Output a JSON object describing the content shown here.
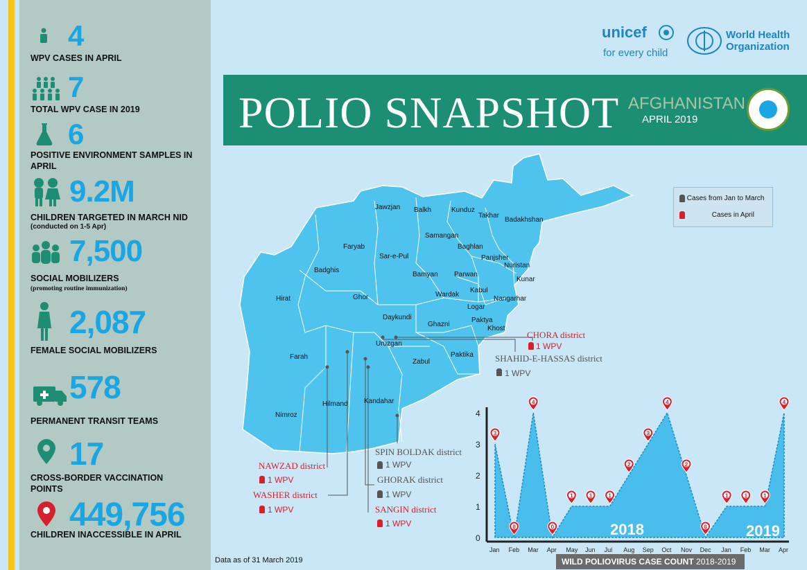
{
  "stats": [
    {
      "number": "4",
      "label": "WPV CASES IN APRIL",
      "icon": "person-icon"
    },
    {
      "number": "7",
      "label": "TOTAL WPV CASE IN 2019",
      "icon": "people-group-icon"
    },
    {
      "number": "6",
      "label": "POSITIVE ENVIRONMENT SAMPLES IN APRIL",
      "icon": "flask-icon"
    },
    {
      "number": "9.2M",
      "label": "CHILDREN TARGETED IN MARCH NID",
      "sub": "(conducted on 1-5 Apr)",
      "icon": "children-icon"
    },
    {
      "number": "7,500",
      "label": "SOCIAL MOBILIZERS",
      "sub": "(promoting routine immunization)",
      "icon": "crowd-icon"
    },
    {
      "number": "2,087",
      "label": "FEMALE SOCIAL MOBILIZERS",
      "icon": "female-icon"
    },
    {
      "number": "578",
      "label": "PERMANENT TRANSIT TEAMS",
      "icon": "ambulance-icon"
    },
    {
      "number": "17",
      "label": "CROSS-BORDER VACCINATION POINTS",
      "icon": "location-pin-icon"
    },
    {
      "number": "449,756",
      "label": "CHILDREN INACCESSIBLE IN APRIL",
      "icon": "red-location-pin-icon"
    }
  ],
  "header": {
    "title": "POLIO SNAPSHOT",
    "country": "AFGHANISTAN",
    "period": "APRIL 2019",
    "unicef": "unicef",
    "unicef_tag": "for every child",
    "who_line1": "World Health",
    "who_line2": "Organization"
  },
  "legend": {
    "jan_mar": "Cases from Jan to March",
    "april": "Cases in April"
  },
  "colors": {
    "teal": "#1c8e74",
    "blue": "#1aa6e3",
    "red": "#d6202c",
    "map": "#4ec3ee",
    "gray": "#555555"
  },
  "provinces": [
    "Jawzjan",
    "Balkh",
    "Kunduz",
    "Takhar",
    "Badakhshan",
    "Samangan",
    "Faryab",
    "Baghlan",
    "Sar-e-Pul",
    "Panjsher",
    "Nuristan",
    "Badghis",
    "Bamyan",
    "Parwan",
    "Kunar",
    "Kabul",
    "Hirat",
    "Ghor",
    "Wardak",
    "Nangarhar",
    "Logar",
    "Daykundi",
    "Paktya",
    "Ghazni",
    "Khost",
    "Uruzgan",
    "Farah",
    "Paktika",
    "Zabul",
    "Hilmand",
    "Kandahar",
    "Nimroz"
  ],
  "callouts": [
    {
      "district": "CHORA district",
      "wpv": "1 WPV",
      "type": "april"
    },
    {
      "district": "SHAHID-E-HASSAS district",
      "wpv": "1 WPV",
      "type": "jan_mar"
    },
    {
      "district": "SPIN BOLDAK district",
      "wpv": "1 WPV",
      "type": "jan_mar"
    },
    {
      "district": "GHORAK district",
      "wpv": "1 WPV",
      "type": "jan_mar"
    },
    {
      "district": "SANGIN district",
      "wpv": "1 WPV",
      "type": "april"
    },
    {
      "district": "NAWZAD district",
      "wpv": "1 WPV",
      "type": "april"
    },
    {
      "district": "WASHER district",
      "wpv": "1 WPV",
      "type": "april"
    }
  ],
  "footnote": "Data as of 31 March 2019",
  "chart_data": {
    "type": "area",
    "title": "WILD POLIOVIRUS CASE COUNT",
    "title_suffix": "2018-2019",
    "categories": [
      "Jan",
      "Feb",
      "Mar",
      "Apr",
      "May",
      "Jun",
      "Jul",
      "Aug",
      "Sep",
      "Oct",
      "Nov",
      "Dec",
      "Jan",
      "Feb",
      "Mar",
      "Apr"
    ],
    "values": [
      3,
      0,
      4,
      0,
      1,
      1,
      1,
      2,
      3,
      4,
      2,
      0,
      1,
      1,
      1,
      4
    ],
    "ylim": [
      0,
      4
    ],
    "yticks": [
      0,
      1,
      2,
      3,
      4
    ],
    "year_labels": [
      "2018",
      "2019"
    ]
  }
}
